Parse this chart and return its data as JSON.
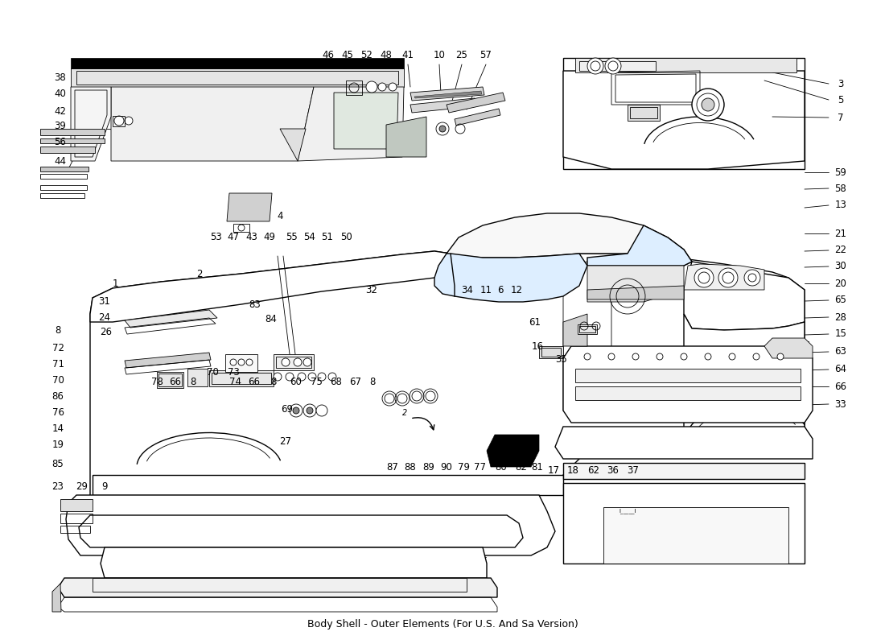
{
  "title": "Body Shell - Outer Elements (For U.S. And Sa Version)",
  "bg": "#ffffff",
  "figsize": [
    11.0,
    8.0
  ],
  "dpi": 100,
  "lw_main": 1.0,
  "lw_thin": 0.6,
  "lw_thick": 1.8,
  "fs_label": 8.5,
  "fs_title": 9.0,
  "left_labels": [
    [
      "38",
      75,
      97
    ],
    [
      "40",
      75,
      117
    ],
    [
      "42",
      75,
      138
    ],
    [
      "39",
      75,
      157
    ],
    [
      "56",
      75,
      177
    ],
    [
      "44",
      75,
      200
    ]
  ],
  "top_labels": [
    [
      "46",
      408,
      68
    ],
    [
      "45",
      432,
      68
    ],
    [
      "52",
      456,
      68
    ],
    [
      "48",
      480,
      68
    ],
    [
      "41",
      507,
      68
    ],
    [
      "10",
      546,
      68
    ],
    [
      "25",
      574,
      68
    ],
    [
      "57",
      604,
      68
    ]
  ],
  "bot_sub_labels": [
    [
      "53",
      268,
      295
    ],
    [
      "47",
      290,
      295
    ],
    [
      "43",
      313,
      295
    ],
    [
      "49",
      335,
      295
    ],
    [
      "55",
      363,
      295
    ],
    [
      "54",
      385,
      295
    ],
    [
      "51",
      407,
      295
    ],
    [
      "50",
      430,
      295
    ]
  ],
  "right_labels": [
    [
      "3",
      1045,
      104
    ],
    [
      "5",
      1045,
      124
    ],
    [
      "7",
      1045,
      146
    ],
    [
      "59",
      1045,
      214
    ],
    [
      "58",
      1045,
      234
    ],
    [
      "13",
      1045,
      255
    ],
    [
      "21",
      1045,
      290
    ],
    [
      "22",
      1045,
      311
    ],
    [
      "30",
      1045,
      331
    ],
    [
      "20",
      1045,
      352
    ],
    [
      "65",
      1045,
      373
    ],
    [
      "28",
      1045,
      394
    ],
    [
      "15",
      1045,
      415
    ],
    [
      "63",
      1045,
      437
    ],
    [
      "64",
      1045,
      459
    ],
    [
      "66",
      1045,
      480
    ],
    [
      "33",
      1045,
      502
    ]
  ],
  "body_labels": [
    [
      "1",
      143,
      352
    ],
    [
      "2",
      248,
      340
    ],
    [
      "4",
      348,
      268
    ],
    [
      "31",
      130,
      374
    ],
    [
      "24",
      130,
      394
    ],
    [
      "8",
      72,
      410
    ],
    [
      "26",
      132,
      412
    ],
    [
      "72",
      72,
      432
    ],
    [
      "71",
      72,
      452
    ],
    [
      "70",
      72,
      472
    ],
    [
      "86",
      72,
      492
    ],
    [
      "76",
      72,
      512
    ],
    [
      "14",
      72,
      533
    ],
    [
      "19",
      72,
      553
    ],
    [
      "85",
      72,
      577
    ],
    [
      "23",
      72,
      605
    ],
    [
      "29",
      102,
      605
    ],
    [
      "9",
      130,
      605
    ],
    [
      "83",
      317,
      378
    ],
    [
      "84",
      337,
      397
    ],
    [
      "32",
      462,
      360
    ],
    [
      "34",
      581,
      360
    ],
    [
      "11",
      604,
      360
    ],
    [
      "6",
      622,
      360
    ],
    [
      "12",
      642,
      360
    ],
    [
      "70",
      264,
      462
    ],
    [
      "73",
      290,
      462
    ],
    [
      "78",
      195,
      474
    ],
    [
      "66",
      218,
      474
    ],
    [
      "8",
      240,
      474
    ],
    [
      "74",
      292,
      474
    ],
    [
      "66",
      316,
      474
    ],
    [
      "8",
      340,
      474
    ],
    [
      "60",
      368,
      474
    ],
    [
      "75",
      393,
      474
    ],
    [
      "68",
      418,
      474
    ],
    [
      "67",
      442,
      474
    ],
    [
      "8",
      463,
      474
    ],
    [
      "69",
      357,
      508
    ],
    [
      "27",
      355,
      548
    ],
    [
      "87",
      488,
      580
    ],
    [
      "88",
      510,
      580
    ],
    [
      "89",
      533,
      580
    ],
    [
      "90",
      555,
      580
    ],
    [
      "79",
      576,
      580
    ],
    [
      "77",
      597,
      580
    ],
    [
      "80",
      623,
      580
    ],
    [
      "82",
      648,
      580
    ],
    [
      "81",
      668,
      580
    ],
    [
      "16",
      668,
      430
    ],
    [
      "35",
      698,
      447
    ],
    [
      "61",
      665,
      400
    ],
    [
      "17",
      688,
      585
    ],
    [
      "18",
      712,
      585
    ],
    [
      "62",
      738,
      585
    ],
    [
      "36",
      762,
      585
    ],
    [
      "37",
      787,
      585
    ]
  ]
}
